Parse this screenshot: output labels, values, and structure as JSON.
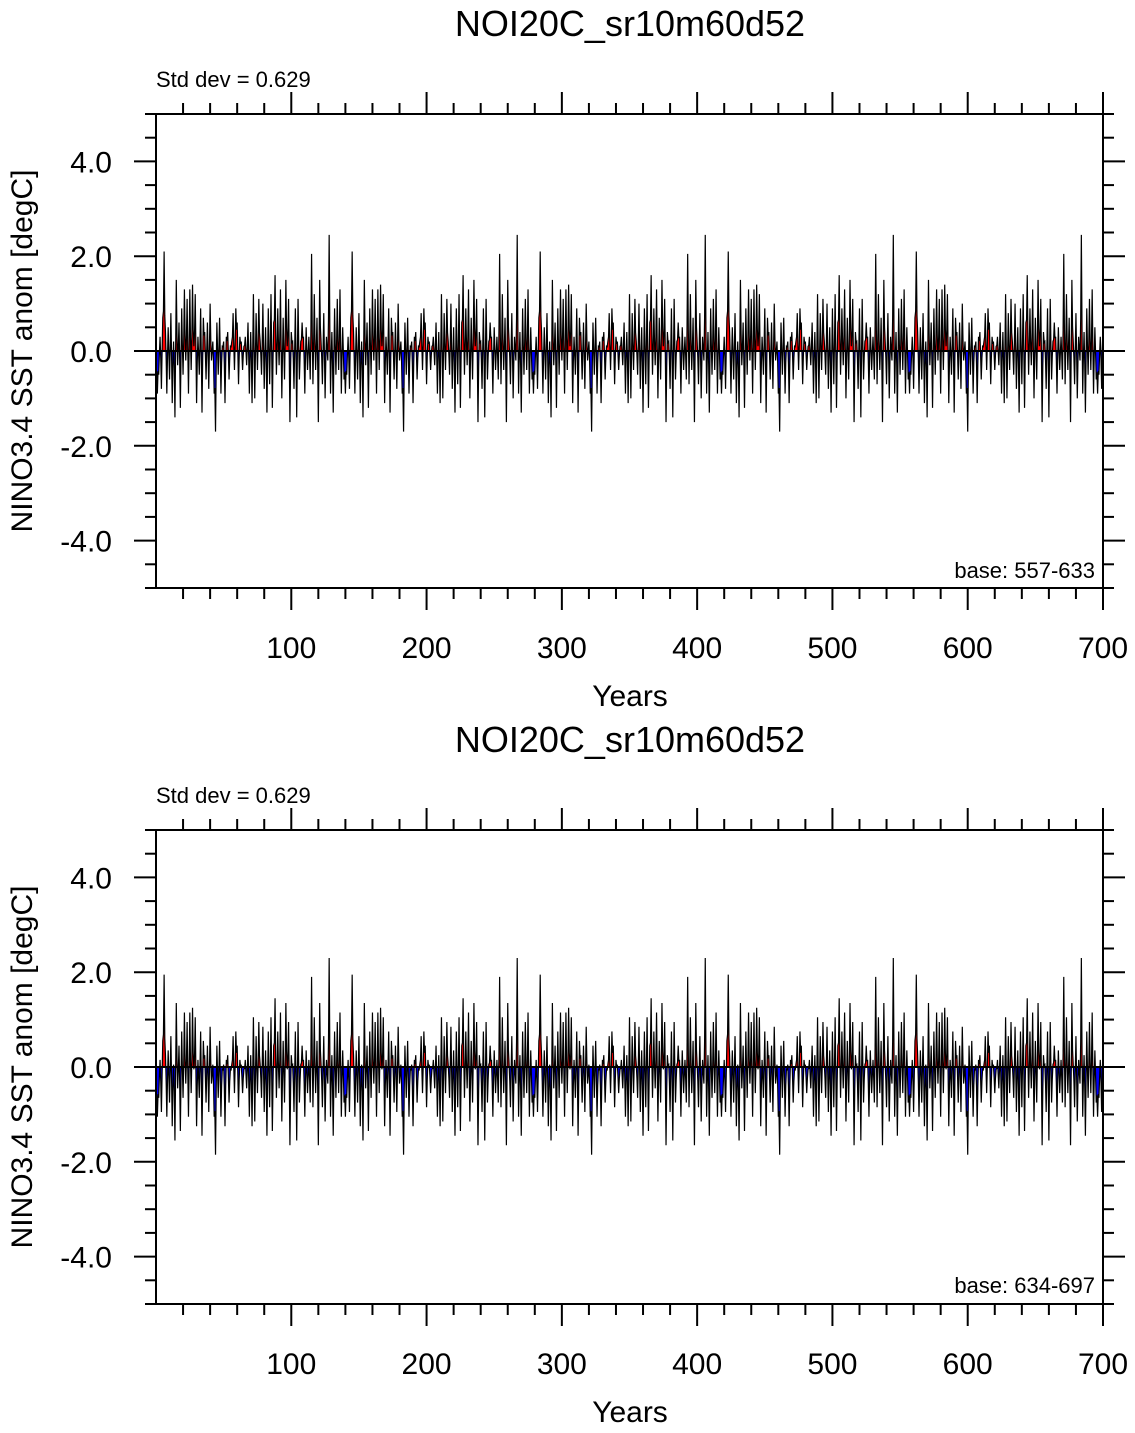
{
  "chart_data": [
    {
      "type": "area",
      "title": "NOI20C_sr10m60d52",
      "xlabel": "Years",
      "ylabel": "NINO3.4 SST anom [degC]",
      "annotation_left": "Std dev = 0.629",
      "annotation_right": "base: 557-633",
      "xlim": [
        0,
        700
      ],
      "ylim": [
        -5,
        5
      ],
      "xticks": [
        100,
        200,
        300,
        400,
        500,
        600,
        700
      ],
      "xtick_labels": [
        "100",
        "200",
        "300",
        "400",
        "500",
        "600",
        "700"
      ],
      "yticks": [
        4,
        2,
        0,
        -2,
        -4
      ],
      "ytick_labels": [
        "4.0",
        "2.0",
        "0.0",
        "-2.0",
        "-4.0"
      ],
      "positive_color": "#ff0000",
      "negative_color": "#0000ff",
      "line_color": "#000000",
      "offset": 0.0
    },
    {
      "type": "area",
      "title": "NOI20C_sr10m60d52",
      "xlabel": "Years",
      "ylabel": "NINO3.4 SST anom [degC]",
      "annotation_left": "Std dev = 0.629",
      "annotation_right": "base: 634-697",
      "xlim": [
        0,
        700
      ],
      "ylim": [
        -5,
        5
      ],
      "xticks": [
        100,
        200,
        300,
        400,
        500,
        600,
        700
      ],
      "xtick_labels": [
        "100",
        "200",
        "300",
        "400",
        "500",
        "600",
        "700"
      ],
      "yticks": [
        4,
        2,
        0,
        -2,
        -4
      ],
      "ytick_labels": [
        "4.0",
        "2.0",
        "0.0",
        "-2.0",
        "-4.0"
      ],
      "positive_color": "#ff0000",
      "negative_color": "#0000ff",
      "line_color": "#000000",
      "offset": -0.15
    }
  ],
  "series_cycle": {
    "period_years": 139,
    "values": [
      -0.6,
      -0.9,
      -0.5,
      0.3,
      -0.8,
      0.7,
      2.1,
      0.4,
      -0.9,
      0.5,
      -0.6,
      0.8,
      -1.1,
      0.2,
      -1.4,
      1.5,
      -0.3,
      0.6,
      -1.2,
      0.9,
      -0.5,
      1.3,
      -0.2,
      1.1,
      -0.9,
      1.3,
      -0.4,
      1.4,
      0.1,
      1.2,
      -1.1,
      0.3,
      -0.5,
      0.9,
      -1.3,
      0.7,
      0.4,
      -0.6,
      0.6,
      -0.8,
      1.0,
      -0.2,
      0.2,
      -0.9,
      -1.7,
      0.6,
      -0.5,
      0.7,
      -0.9,
      0.1,
      0.2,
      -1.1,
      0.3,
      0.4,
      -0.6,
      0.1,
      0.2,
      0.8,
      -0.4,
      0.9,
      0.6,
      -0.7,
      0.3,
      0.2,
      -0.4,
      0.1,
      0.3,
      -0.3,
      0.6,
      -0.9,
      0.4,
      -1.1,
      1.2,
      -1.0,
      0.8,
      -0.4,
      1.1,
      0.2,
      -0.5,
      1.0,
      -0.8,
      0.5,
      -1.3,
      0.9,
      -0.7,
      1.2,
      -1.2,
      0.6,
      1.6,
      -0.5,
      0.9,
      -0.3,
      1.3,
      -1.0,
      0.7,
      -0.6,
      1.5,
      0.1,
      1.1,
      -1.5,
      0.4,
      0.2,
      -0.8,
      0.9,
      -1.4,
      1.1,
      -0.6,
      0.2,
      0.6,
      0.3,
      -0.9,
      0.5,
      -0.4,
      0.3,
      -0.6,
      2.05,
      -0.7,
      1.2,
      -0.4,
      0.7,
      -1.5,
      1.5,
      0.2,
      -0.7,
      0.8,
      -1.0,
      0.3,
      -0.2,
      2.45,
      -0.9,
      0.4,
      -1.3,
      0.9,
      -0.5,
      1.1,
      -0.4,
      1.3,
      -0.9,
      0.5
    ]
  }
}
